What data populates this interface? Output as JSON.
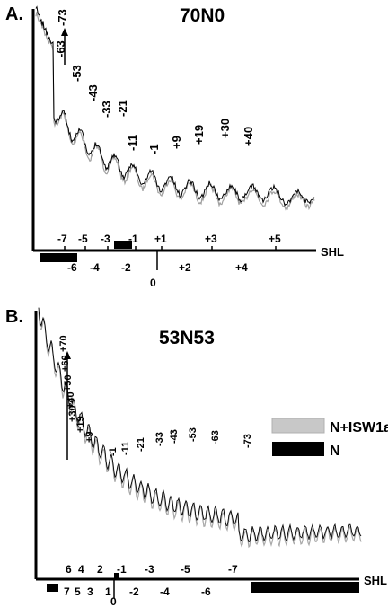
{
  "chart_data": [
    {
      "type": "line",
      "panel_letter": "A.",
      "title": "70N0",
      "axis_label": "SHL",
      "peak_labels": [
        "-73",
        "-63",
        "-53",
        "-43",
        "-33",
        "-21",
        "-11",
        "-1",
        "+9",
        "+19",
        "+30",
        "+40"
      ],
      "peak_label_positions_note": "",
      "shl_ticks_top": [
        "-7",
        "-5",
        "-3",
        "-1",
        "+1",
        "+3",
        "+5"
      ],
      "shl_ticks_bottom": [
        "-6",
        "-4",
        "-2",
        "0",
        "+2",
        "+4"
      ],
      "series": [
        {
          "name": "",
          "color": "#000000"
        },
        {
          "name": "",
          "color": "#a9a9a9"
        }
      ]
    },
    {
      "type": "line",
      "panel_letter": "B.",
      "title": "53N53",
      "axis_label": "SHL",
      "peak_labels": [
        "+70",
        "+60",
        "+50",
        "+40",
        "+30",
        "+19",
        "+9",
        "-1",
        "-11",
        "-21",
        "-33",
        "-43",
        "-53",
        "-63",
        "-73"
      ],
      "shl_ticks_top": [
        "6",
        "4",
        "2",
        "-1",
        "-3",
        "-5",
        "-7"
      ],
      "shl_ticks_bottom": [
        "7",
        "5",
        "3",
        "1",
        "0",
        "-2",
        "-4",
        "-6"
      ],
      "legend": [
        {
          "name": "N+ISW1a",
          "color": "#c8c8c8"
        },
        {
          "name": "N",
          "color": "#000000"
        }
      ],
      "series": [
        {
          "name": "N+ISW1a",
          "color": "#a9a9a9"
        },
        {
          "name": "N",
          "color": "#000000"
        }
      ]
    }
  ]
}
